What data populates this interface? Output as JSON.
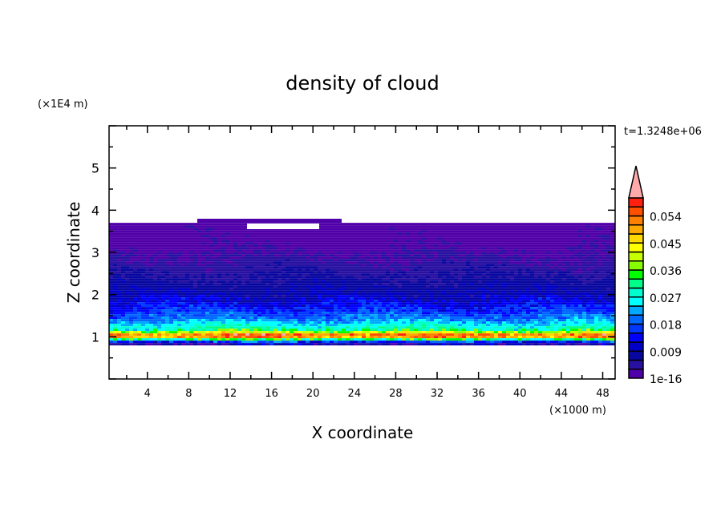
{
  "chart_data": {
    "type": "heatmap",
    "subtype": "filled-contour",
    "title": "density of cloud",
    "xlabel": "X coordinate",
    "ylabel": "Z coordinate",
    "x_unit": "(×1000 m)",
    "y_unit": "(×1E4 m)",
    "time_label": "t=1.3248e+06",
    "xlim": [
      0.3,
      49.2
    ],
    "ylim": [
      0,
      6
    ],
    "x_ticks": [
      "4",
      "8",
      "12",
      "16",
      "20",
      "24",
      "28",
      "32",
      "36",
      "40",
      "44",
      "48"
    ],
    "y_ticks": [
      "1",
      "2",
      "3",
      "4",
      "5"
    ],
    "grid": false,
    "colorbar": {
      "position": "right",
      "levels": [
        1e-16,
        0.003,
        0.006,
        0.009,
        0.012,
        0.015,
        0.018,
        0.021,
        0.024,
        0.027,
        0.03,
        0.033,
        0.036,
        0.039,
        0.042,
        0.045,
        0.048,
        0.051,
        0.054,
        0.057,
        0.06
      ],
      "tick_labels": [
        "1e-16",
        "0.009",
        "0.018",
        "0.027",
        "0.036",
        "0.045",
        "0.054"
      ],
      "extend": "max",
      "colors": [
        "#5000a8",
        "#2810a0",
        "#0808a0",
        "#0000c8",
        "#0000ff",
        "#0038ff",
        "#0068ff",
        "#00a8ff",
        "#00ffff",
        "#00ffd0",
        "#00ff88",
        "#00ff00",
        "#88ff00",
        "#c8ff00",
        "#ffff00",
        "#ffd800",
        "#ffa800",
        "#ff8000",
        "#ff5000",
        "#ff2010"
      ],
      "over_color": "#ffaaaa"
    },
    "mean_vertical_profile": {
      "z": [
        0.79,
        0.82,
        0.86,
        0.9,
        0.95,
        1.0,
        1.05,
        1.1,
        1.15,
        1.25,
        1.4,
        1.6,
        1.8,
        2.0,
        2.3,
        2.6,
        2.9,
        3.3,
        3.7
      ],
      "density": [
        0.002,
        0.006,
        0.012,
        0.02,
        0.036,
        0.053,
        0.052,
        0.042,
        0.032,
        0.027,
        0.021,
        0.016,
        0.012,
        0.009,
        0.007,
        0.005,
        0.003,
        0.001,
        0.0005
      ]
    },
    "cloud_top": 3.7,
    "cloud_base": 0.79
  }
}
